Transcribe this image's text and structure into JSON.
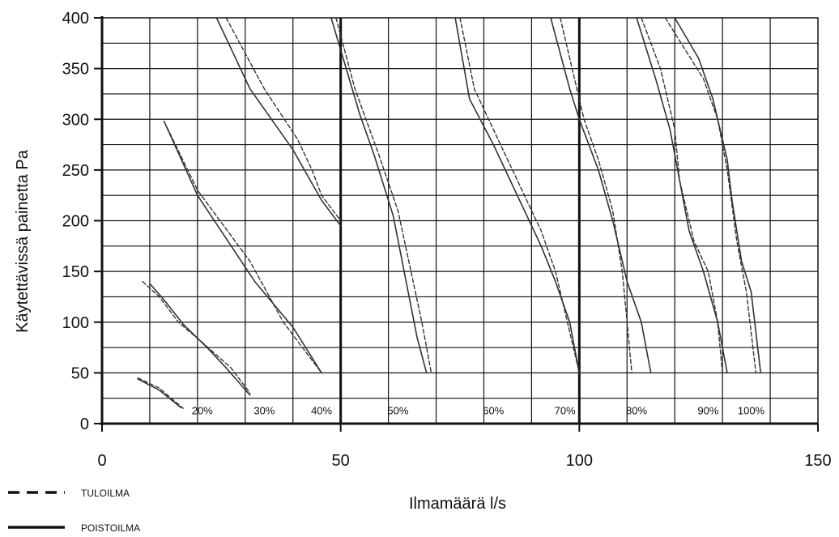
{
  "chart_data": {
    "type": "line",
    "xlabel": "Ilmamäärä l/s",
    "ylabel": "Käytettävissä painetta Pa",
    "xlim": [
      0,
      150
    ],
    "ylim": [
      0,
      400
    ],
    "x_ticks": [
      "0",
      "50",
      "100",
      "150"
    ],
    "y_ticks": [
      "0",
      "50",
      "100",
      "150",
      "200",
      "250",
      "300",
      "350",
      "400"
    ],
    "grid": "on",
    "legend": [
      {
        "name": "TULOILMA",
        "style": "dashed"
      },
      {
        "name": "POISTOILMA",
        "style": "solid"
      }
    ],
    "annotations": [
      {
        "text": "20%",
        "x": 21,
        "y": 13
      },
      {
        "text": "30%",
        "x": 34,
        "y": 13
      },
      {
        "text": "40%",
        "x": 46,
        "y": 13
      },
      {
        "text": "50%",
        "x": 62,
        "y": 13
      },
      {
        "text": "60%",
        "x": 82,
        "y": 13
      },
      {
        "text": "70%",
        "x": 97,
        "y": 13
      },
      {
        "text": "80%",
        "x": 112,
        "y": 13
      },
      {
        "text": "90%",
        "x": 127,
        "y": 13
      },
      {
        "text": "100%",
        "x": 136,
        "y": 13
      }
    ],
    "series": [
      {
        "speed": "20%",
        "flow": "tuloilma",
        "x": [
          7.5,
          12,
          17
        ],
        "y": [
          45,
          35,
          15
        ]
      },
      {
        "speed": "20%",
        "flow": "poistoilma",
        "x": [
          7.5,
          12,
          16.5
        ],
        "y": [
          44,
          33,
          16
        ]
      },
      {
        "speed": "30%",
        "flow": "tuloilma",
        "x": [
          8.5,
          12,
          16,
          21,
          27,
          31
        ],
        "y": [
          140,
          125,
          100,
          80,
          55,
          30
        ]
      },
      {
        "speed": "30%",
        "flow": "poistoilma",
        "x": [
          10,
          13,
          17,
          22,
          26,
          31
        ],
        "y": [
          138,
          122,
          98,
          75,
          55,
          28
        ]
      },
      {
        "speed": "40%",
        "flow": "tuloilma",
        "x": [
          13,
          20,
          31,
          38,
          46
        ],
        "y": [
          298,
          230,
          160,
          100,
          50
        ]
      },
      {
        "speed": "40%",
        "flow": "poistoilma",
        "x": [
          13,
          20,
          32,
          40,
          46
        ],
        "y": [
          298,
          225,
          140,
          95,
          50
        ]
      },
      {
        "speed": "50%",
        "flow": "tuloilma",
        "x": [
          26,
          34,
          41,
          44,
          46,
          50
        ],
        "y": [
          400,
          330,
          280,
          250,
          225,
          200
        ]
      },
      {
        "speed": "50%",
        "flow": "poistoilma",
        "x": [
          24,
          31,
          40,
          46,
          50
        ],
        "y": [
          400,
          330,
          270,
          220,
          195
        ]
      },
      {
        "speed": "60%",
        "flow": "tuloilma",
        "x": [
          49,
          53,
          58,
          62,
          67,
          69
        ],
        "y": [
          400,
          330,
          265,
          210,
          100,
          50
        ]
      },
      {
        "speed": "60%",
        "flow": "poistoilma",
        "x": [
          48,
          54,
          57,
          61,
          66,
          68
        ],
        "y": [
          400,
          305,
          265,
          205,
          85,
          50
        ]
      },
      {
        "speed": "70%",
        "flow": "tuloilma",
        "x": [
          75,
          78,
          83,
          88,
          92,
          95,
          97,
          100
        ],
        "y": [
          400,
          330,
          280,
          230,
          190,
          150,
          110,
          50
        ]
      },
      {
        "speed": "70%",
        "flow": "poistoilma",
        "x": [
          74,
          77,
          82,
          88,
          92,
          95,
          98,
          100
        ],
        "y": [
          400,
          320,
          275,
          215,
          175,
          140,
          100,
          50
        ]
      },
      {
        "speed": "80%",
        "flow": "tuloilma",
        "x": [
          96,
          99,
          101,
          104,
          107,
          109,
          110,
          111
        ],
        "y": [
          400,
          340,
          300,
          260,
          210,
          150,
          100,
          50
        ]
      },
      {
        "speed": "80%",
        "flow": "poistoilma",
        "x": [
          94,
          98,
          100,
          104,
          107,
          110,
          113,
          115
        ],
        "y": [
          400,
          330,
          300,
          250,
          200,
          140,
          100,
          50
        ]
      },
      {
        "speed": "90%",
        "flow": "tuloilma",
        "x": [
          113,
          117,
          120,
          121,
          124,
          127,
          129,
          130
        ],
        "y": [
          400,
          350,
          290,
          240,
          180,
          150,
          100,
          50
        ]
      },
      {
        "speed": "90%",
        "flow": "poistoilma",
        "x": [
          112,
          116,
          119,
          121,
          123,
          126,
          129,
          131
        ],
        "y": [
          400,
          340,
          290,
          240,
          190,
          150,
          100,
          50
        ]
      },
      {
        "speed": "100%",
        "flow": "tuloilma",
        "x": [
          118,
          122,
          126,
          129,
          131,
          133,
          135,
          137
        ],
        "y": [
          400,
          370,
          340,
          300,
          250,
          180,
          130,
          50
        ]
      },
      {
        "speed": "100%",
        "flow": "poistoilma",
        "x": [
          120,
          125,
          128,
          131,
          132,
          134,
          136,
          138
        ],
        "y": [
          400,
          360,
          320,
          260,
          220,
          160,
          130,
          50
        ]
      }
    ]
  }
}
